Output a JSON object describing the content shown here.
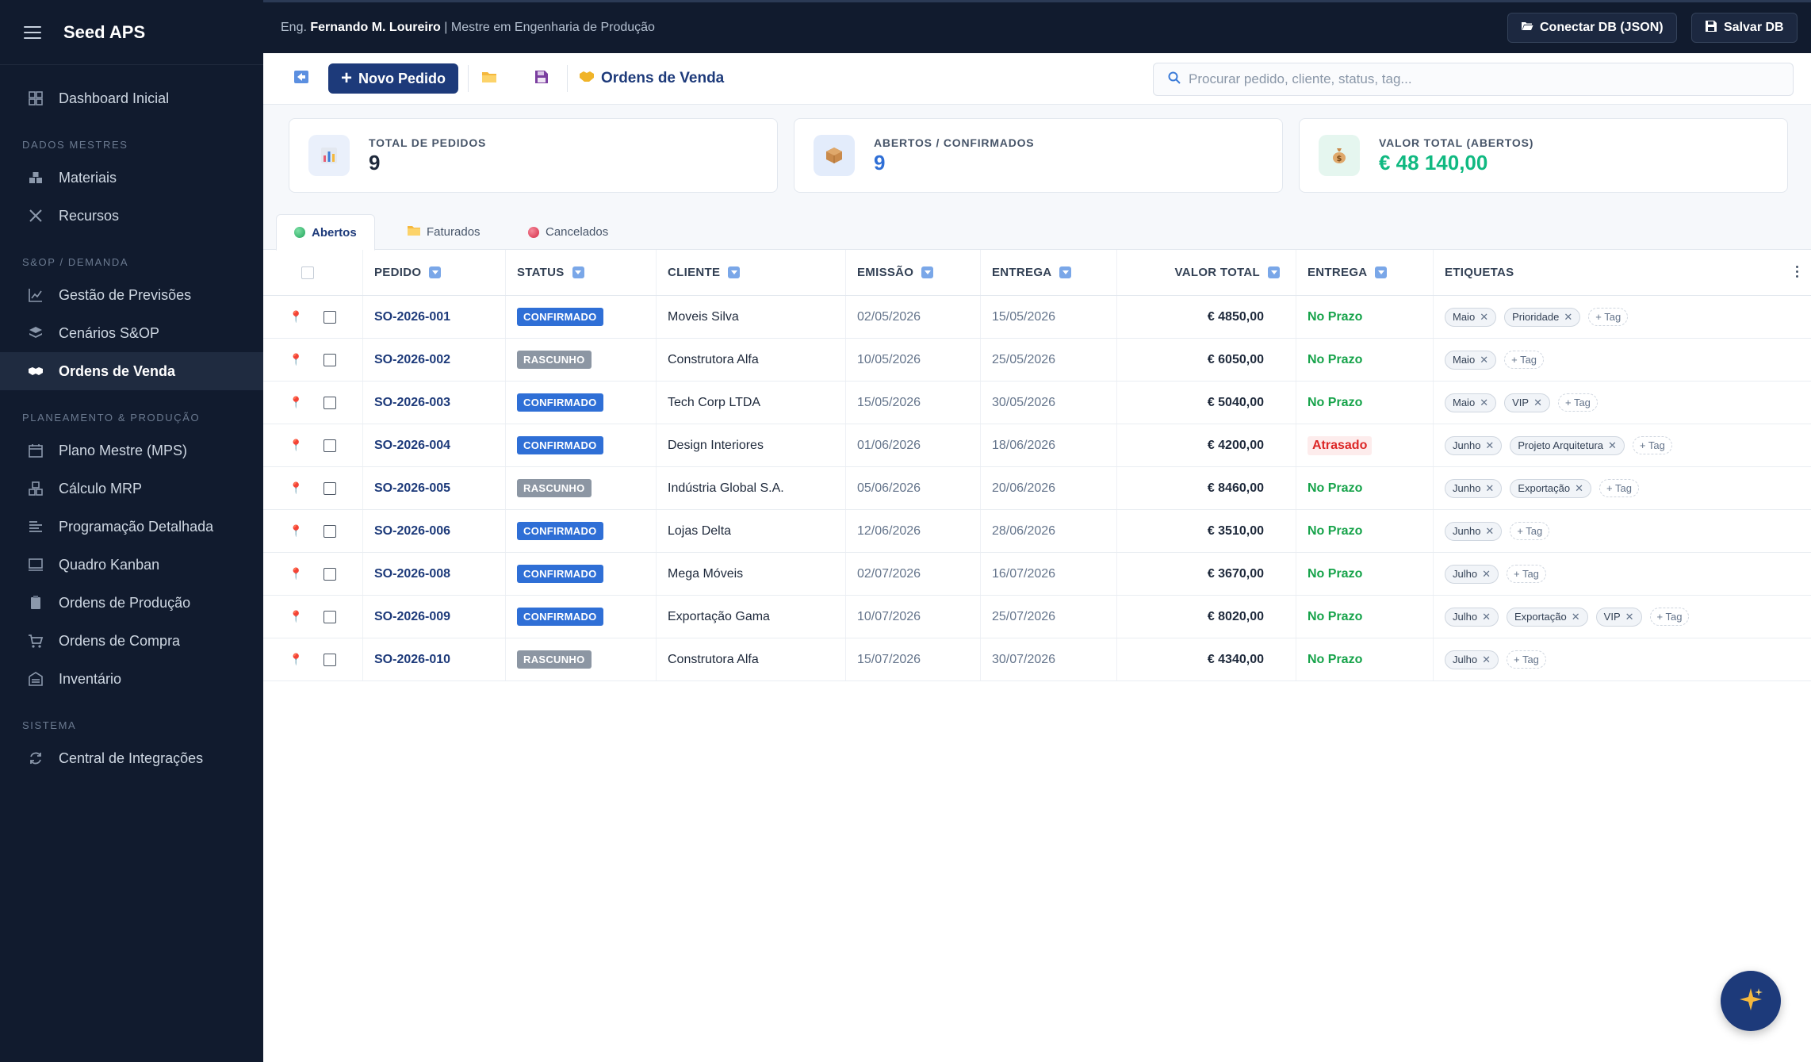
{
  "app": {
    "title": "Seed APS"
  },
  "sidebar": {
    "dashboard": "Dashboard Inicial",
    "section_master": "DADOS MESTRES",
    "materials": "Materiais",
    "resources": "Recursos",
    "section_sop": "S&OP / DEMANDA",
    "forecast": "Gestão de Previsões",
    "scenarios": "Cenários S&OP",
    "sales_orders": "Ordens de Venda",
    "section_planning": "PLANEAMENTO & PRODUÇÃO",
    "mps": "Plano Mestre (MPS)",
    "mrp": "Cálculo MRP",
    "scheduling": "Programação Detalhada",
    "kanban": "Quadro Kanban",
    "production_orders": "Ordens de Produção",
    "purchase_orders": "Ordens de Compra",
    "inventory": "Inventário",
    "section_system": "SISTEMA",
    "integrations": "Central de Integrações"
  },
  "topbar": {
    "prefix": "Eng.",
    "name": "Fernando M. Loureiro",
    "separator": "|",
    "role": "Mestre em Engenharia de Produção",
    "connect_db": "Conectar DB (JSON)",
    "save_db": "Salvar DB"
  },
  "toolbar": {
    "new_order": "Novo Pedido",
    "title": "Ordens de Venda",
    "search_placeholder": "Procurar pedido, cliente, status, tag..."
  },
  "kpis": {
    "total_label": "TOTAL DE PEDIDOS",
    "total_value": "9",
    "open_label": "ABERTOS / CONFIRMADOS",
    "open_value": "9",
    "value_label": "VALOR TOTAL (ABERTOS)",
    "value_value": "€ 48 140,00"
  },
  "tabs": {
    "open": "Abertos",
    "invoiced": "Faturados",
    "cancelled": "Cancelados"
  },
  "table": {
    "headers": {
      "order": "PEDIDO",
      "status": "STATUS",
      "client": "CLIENTE",
      "issue": "EMISSÃO",
      "delivery": "ENTREGA",
      "total": "VALOR TOTAL",
      "delivery_status": "ENTREGA",
      "tags": "ETIQUETAS"
    },
    "add_tag": "+ Tag",
    "rows": [
      {
        "id": "SO-2026-001",
        "status": "CONFIRMADO",
        "client": "Moveis Silva",
        "issue": "02/05/2026",
        "delivery": "15/05/2026",
        "total": "€ 4850,00",
        "delivery_status": "No Prazo",
        "tag1": "Maio",
        "tag2": "Prioridade"
      },
      {
        "id": "SO-2026-002",
        "status": "RASCUNHO",
        "client": "Construtora Alfa",
        "issue": "10/05/2026",
        "delivery": "25/05/2026",
        "total": "€ 6050,00",
        "delivery_status": "No Prazo",
        "tag1": "Maio"
      },
      {
        "id": "SO-2026-003",
        "status": "CONFIRMADO",
        "client": "Tech Corp LTDA",
        "issue": "15/05/2026",
        "delivery": "30/05/2026",
        "total": "€ 5040,00",
        "delivery_status": "No Prazo",
        "tag1": "Maio",
        "tag2": "VIP"
      },
      {
        "id": "SO-2026-004",
        "status": "CONFIRMADO",
        "client": "Design Interiores",
        "issue": "01/06/2026",
        "delivery": "18/06/2026",
        "total": "€ 4200,00",
        "delivery_status": "Atrasado",
        "tag1": "Junho",
        "tag2": "Projeto Arquitetura"
      },
      {
        "id": "SO-2026-005",
        "status": "RASCUNHO",
        "client": "Indústria Global S.A.",
        "issue": "05/06/2026",
        "delivery": "20/06/2026",
        "total": "€ 8460,00",
        "delivery_status": "No Prazo",
        "tag1": "Junho",
        "tag2": "Exportação"
      },
      {
        "id": "SO-2026-006",
        "status": "CONFIRMADO",
        "client": "Lojas Delta",
        "issue": "12/06/2026",
        "delivery": "28/06/2026",
        "total": "€ 3510,00",
        "delivery_status": "No Prazo",
        "tag1": "Junho"
      },
      {
        "id": "SO-2026-008",
        "status": "CONFIRMADO",
        "client": "Mega Móveis",
        "issue": "02/07/2026",
        "delivery": "16/07/2026",
        "total": "€ 3670,00",
        "delivery_status": "No Prazo",
        "tag1": "Julho"
      },
      {
        "id": "SO-2026-009",
        "status": "CONFIRMADO",
        "client": "Exportação Gama",
        "issue": "10/07/2026",
        "delivery": "25/07/2026",
        "total": "€ 8020,00",
        "delivery_status": "No Prazo",
        "tag1": "Julho",
        "tag2": "Exportação",
        "tag3": "VIP"
      },
      {
        "id": "SO-2026-010",
        "status": "RASCUNHO",
        "client": "Construtora Alfa",
        "issue": "15/07/2026",
        "delivery": "30/07/2026",
        "total": "€ 4340,00",
        "delivery_status": "No Prazo",
        "tag1": "Julho"
      }
    ]
  },
  "colors": {
    "sidebar_bg": "#111b2e",
    "accent": "#1d3a7a",
    "confirmed": "#2f6fd6",
    "draft": "#8c96a3",
    "on_time": "#16a34a",
    "late": "#dc2626",
    "kpi_value_green": "#10b981"
  },
  "icons": {
    "fab": "sparkles-icon"
  }
}
